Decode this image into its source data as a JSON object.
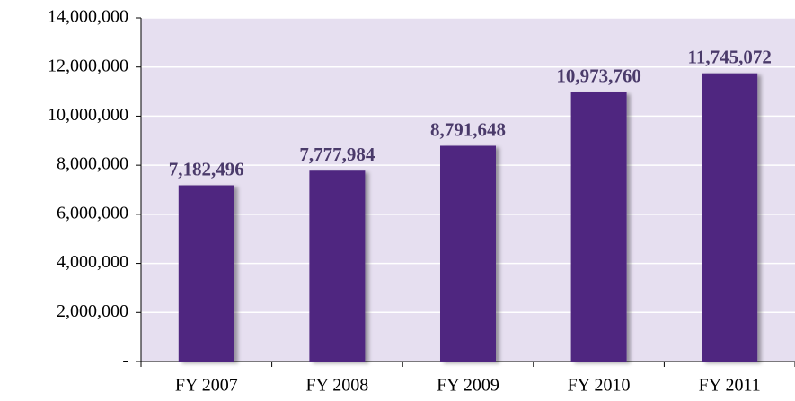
{
  "chart_data": {
    "type": "bar",
    "categories": [
      "FY 2007",
      "FY 2008",
      "FY 2009",
      "FY 2010",
      "FY 2011"
    ],
    "values": [
      7182496,
      7777984,
      8791648,
      10973760,
      11745072
    ],
    "value_labels": [
      "7,182,496",
      "7,777,984",
      "8,791,648",
      "10,973,760",
      "11,745,072"
    ],
    "color": "#4f2580",
    "ylim": [
      0,
      14000000
    ],
    "yticks": [
      {
        "value": 0,
        "label": "-"
      },
      {
        "value": 2000000,
        "label": "2,000,000"
      },
      {
        "value": 4000000,
        "label": "4,000,000"
      },
      {
        "value": 6000000,
        "label": "6,000,000"
      },
      {
        "value": 8000000,
        "label": "8,000,000"
      },
      {
        "value": 10000000,
        "label": "10,000,000"
      },
      {
        "value": 12000000,
        "label": "12,000,000"
      },
      {
        "value": 14000000,
        "label": "14,000,000"
      }
    ],
    "grid": true
  }
}
